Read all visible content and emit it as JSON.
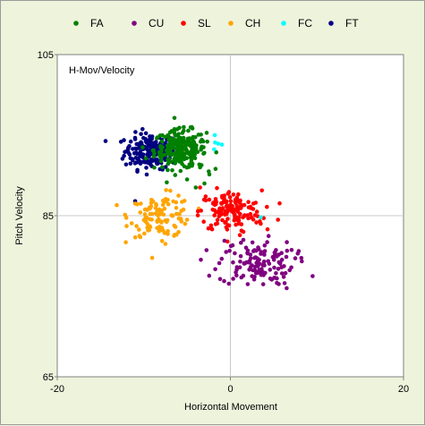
{
  "chart_data": {
    "type": "scatter",
    "title": "H-Mov/Velocity",
    "xlabel": "Horizontal Movement",
    "ylabel": "Pitch Velocity",
    "xlim": [
      -20,
      20
    ],
    "ylim": [
      65,
      105
    ],
    "xticks": [
      "-20",
      "0",
      "20"
    ],
    "yticks": [
      "105",
      "85",
      "65"
    ],
    "xtick_values": [
      -20,
      0,
      20
    ],
    "ytick_values": [
      105,
      85,
      65
    ],
    "grid": true,
    "legend_position": "top",
    "series": [
      {
        "name": "FA",
        "color": "#008000",
        "center": [
          -5.8,
          93.2
        ],
        "spread": [
          1.5,
          1.2
        ],
        "count": 230,
        "values": [
          [
            -6.0,
            94.5
          ],
          [
            -4.5,
            92.0
          ],
          [
            -3.5,
            91.0
          ],
          [
            -2.5,
            90.5
          ],
          [
            -5.0,
            89.5
          ],
          [
            -4.0,
            88.5
          ],
          [
            -3.0,
            89.0
          ],
          [
            -6.5,
            95.5
          ]
        ]
      },
      {
        "name": "CU",
        "color": "#800080",
        "center": [
          3.0,
          79.2
        ],
        "spread": [
          2.2,
          1.4
        ],
        "count": 130,
        "values": [
          [
            -0.5,
            80.5
          ],
          [
            6.5,
            76.0
          ],
          [
            9.5,
            77.5
          ],
          [
            2.0,
            76.5
          ],
          [
            1.5,
            82.0
          ]
        ]
      },
      {
        "name": "SL",
        "color": "#ff0000",
        "center": [
          0.0,
          85.5
        ],
        "spread": [
          1.8,
          1.3
        ],
        "count": 150,
        "values": [
          [
            -3.5,
            88.5
          ],
          [
            3.5,
            84.0
          ],
          [
            5.5,
            84.5
          ],
          [
            1.5,
            83.0
          ],
          [
            -2.0,
            86.5
          ]
        ]
      },
      {
        "name": "CH",
        "color": "#ffa500",
        "center": [
          -8.0,
          85.0
        ],
        "spread": [
          1.8,
          1.3
        ],
        "count": 110,
        "values": [
          [
            -11.0,
            86.5
          ],
          [
            -10.5,
            82.5
          ],
          [
            -6.5,
            82.5
          ],
          [
            -7.5,
            81.5
          ],
          [
            -5.0,
            84.5
          ]
        ]
      },
      {
        "name": "FC",
        "color": "#00ffff",
        "center": [
          -1.5,
          93.8
        ],
        "spread": [
          0.3,
          0.6
        ],
        "count": 4,
        "values": [
          [
            3.5,
            84.8
          ],
          [
            -1.8,
            95.0
          ]
        ]
      },
      {
        "name": "FT",
        "color": "#000080",
        "center": [
          -9.2,
          93.0
        ],
        "spread": [
          1.5,
          1.1
        ],
        "count": 190,
        "values": [
          [
            -12.0,
            93.0
          ],
          [
            -11.0,
            94.5
          ],
          [
            -11.0,
            86.8
          ],
          [
            -8.5,
            91.5
          ]
        ]
      }
    ]
  }
}
